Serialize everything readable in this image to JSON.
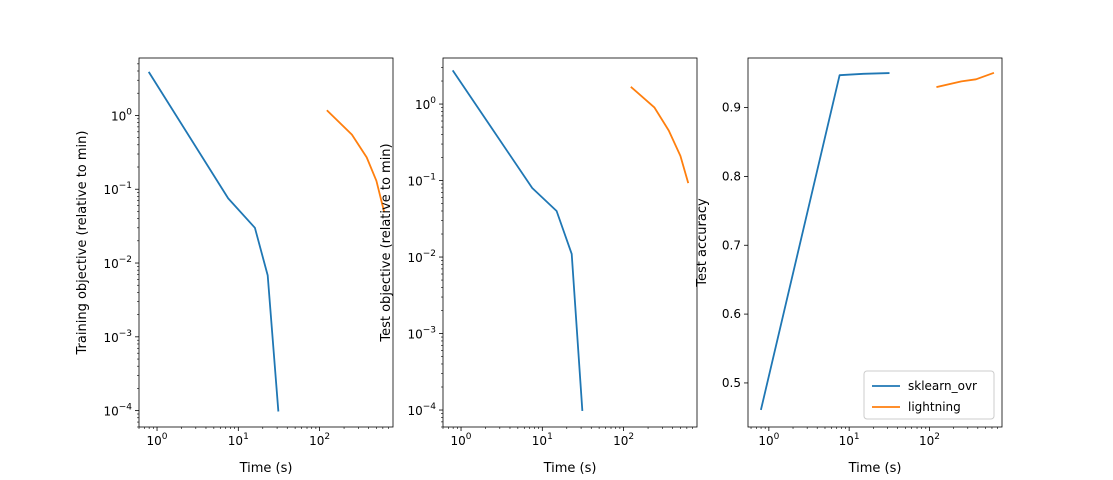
{
  "colors": {
    "series_0": "#1f77b4",
    "series_1": "#ff7f0e"
  },
  "chart_data": [
    {
      "type": "line",
      "xscale": "log",
      "yscale": "log",
      "xlabel": "Time (s)",
      "ylabel": "Training objective (relative to min)",
      "xlim": [
        0.6,
        800
      ],
      "ylim": [
        6e-05,
        6
      ],
      "xticks": [
        {
          "value": 1,
          "exp": "0"
        },
        {
          "value": 10,
          "exp": "1"
        },
        {
          "value": 100,
          "exp": "2"
        }
      ],
      "yticks": [
        {
          "value": 0.0001,
          "exp": "−4"
        },
        {
          "value": 0.001,
          "exp": "−3"
        },
        {
          "value": 0.01,
          "exp": "−2"
        },
        {
          "value": 0.1,
          "exp": "−1"
        },
        {
          "value": 1,
          "exp": "0"
        }
      ],
      "series": [
        {
          "name": "sklearn_ovr",
          "x": [
            0.8,
            7.5,
            16,
            23,
            31
          ],
          "y": [
            3.8,
            0.075,
            0.03,
            0.0068,
            0.0001
          ]
        },
        {
          "name": "lightning",
          "x": [
            125,
            250,
            380,
            500,
            620
          ],
          "y": [
            1.15,
            0.55,
            0.27,
            0.13,
            0.05
          ]
        }
      ]
    },
    {
      "type": "line",
      "xscale": "log",
      "yscale": "log",
      "xlabel": "Time (s)",
      "ylabel": "Test objective (relative to min)",
      "xlim": [
        0.6,
        800
      ],
      "ylim": [
        6e-05,
        4
      ],
      "xticks": [
        {
          "value": 1,
          "exp": "0"
        },
        {
          "value": 10,
          "exp": "1"
        },
        {
          "value": 100,
          "exp": "2"
        }
      ],
      "yticks": [
        {
          "value": 0.0001,
          "exp": "−4"
        },
        {
          "value": 0.001,
          "exp": "−3"
        },
        {
          "value": 0.01,
          "exp": "−2"
        },
        {
          "value": 0.1,
          "exp": "−1"
        },
        {
          "value": 1,
          "exp": "0"
        }
      ],
      "series": [
        {
          "name": "sklearn_ovr",
          "x": [
            0.8,
            7.5,
            15,
            23,
            31
          ],
          "y": [
            2.7,
            0.08,
            0.04,
            0.011,
            0.0001
          ]
        },
        {
          "name": "lightning",
          "x": [
            125,
            240,
            360,
            500,
            620
          ],
          "y": [
            1.65,
            0.9,
            0.45,
            0.21,
            0.095
          ]
        }
      ]
    },
    {
      "type": "line",
      "xscale": "log",
      "yscale": "linear",
      "xlabel": "Time (s)",
      "ylabel": "Test accuracy",
      "xlim": [
        0.55,
        800
      ],
      "ylim": [
        0.436,
        0.972
      ],
      "xticks": [
        {
          "value": 1,
          "exp": "0"
        },
        {
          "value": 10,
          "exp": "1"
        },
        {
          "value": 100,
          "exp": "2"
        }
      ],
      "yticks": [
        {
          "value": 0.5,
          "label": "0.5"
        },
        {
          "value": 0.6,
          "label": "0.6"
        },
        {
          "value": 0.7,
          "label": "0.7"
        },
        {
          "value": 0.8,
          "label": "0.8"
        },
        {
          "value": 0.9,
          "label": "0.9"
        }
      ],
      "legend": "lower right",
      "series": [
        {
          "name": "sklearn_ovr",
          "x": [
            0.8,
            7.6,
            15,
            31
          ],
          "y": [
            0.462,
            0.947,
            0.949,
            0.95
          ]
        },
        {
          "name": "lightning",
          "x": [
            125,
            250,
            380,
            620
          ],
          "y": [
            0.93,
            0.938,
            0.941,
            0.95
          ]
        }
      ]
    }
  ]
}
